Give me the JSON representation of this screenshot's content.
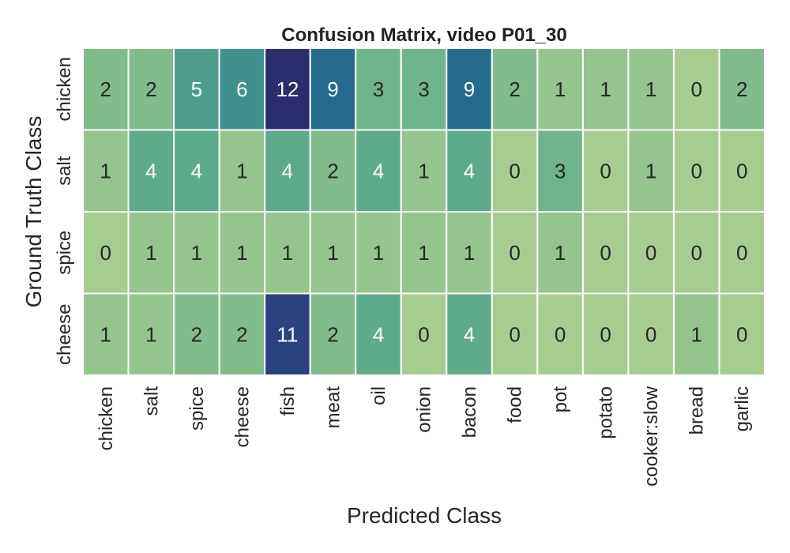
{
  "chart_data": {
    "type": "heatmap",
    "title": "Confusion Matrix, video P01_30",
    "xlabel": "Predicted Class",
    "ylabel": "Ground Truth Class",
    "x_categories": [
      "chicken",
      "salt",
      "spice",
      "cheese",
      "fish",
      "meat",
      "oil",
      "onion",
      "bacon",
      "food",
      "pot",
      "potato",
      "cooker:slow",
      "bread",
      "garlic"
    ],
    "y_categories": [
      "chicken",
      "salt",
      "spice",
      "cheese"
    ],
    "values": [
      [
        2,
        2,
        5,
        6,
        12,
        9,
        3,
        3,
        9,
        2,
        1,
        1,
        1,
        0,
        2
      ],
      [
        1,
        4,
        4,
        1,
        4,
        2,
        4,
        1,
        4,
        0,
        3,
        0,
        1,
        0,
        0
      ],
      [
        0,
        1,
        1,
        1,
        1,
        1,
        1,
        1,
        1,
        0,
        1,
        0,
        0,
        0,
        0
      ],
      [
        1,
        1,
        2,
        2,
        11,
        2,
        4,
        0,
        4,
        0,
        0,
        0,
        0,
        1,
        0
      ]
    ],
    "colormap": "crest",
    "colorbar": false,
    "annotations": true
  }
}
